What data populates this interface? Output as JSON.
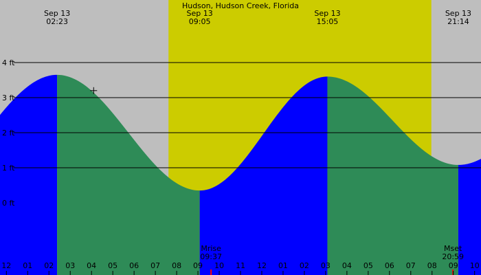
{
  "chart_data": {
    "type": "area",
    "title": "Hudson, Hudson Creek, Florida",
    "xlabel": "",
    "ylabel": "",
    "x_unit": "hours after midnight",
    "xlim": [
      -0.3,
      22.3
    ],
    "ylim": [
      -2.1,
      4.0
    ],
    "grid": true,
    "y_ticks": [
      {
        "label": "4 ft",
        "value": 4
      },
      {
        "label": "3 ft",
        "value": 3
      },
      {
        "label": "2 ft",
        "value": 2
      },
      {
        "label": "1 ft",
        "value": 1
      },
      {
        "label": "0 ft",
        "value": 0
      }
    ],
    "x_ticks": [
      {
        "label": "11",
        "hour": -1
      },
      {
        "label": "12",
        "hour": 0
      },
      {
        "label": "01",
        "hour": 1
      },
      {
        "label": "02",
        "hour": 2
      },
      {
        "label": "03",
        "hour": 3
      },
      {
        "label": "04",
        "hour": 4
      },
      {
        "label": "05",
        "hour": 5
      },
      {
        "label": "06",
        "hour": 6
      },
      {
        "label": "07",
        "hour": 7
      },
      {
        "label": "08",
        "hour": 8
      },
      {
        "label": "09",
        "hour": 9
      },
      {
        "label": "10",
        "hour": 10
      },
      {
        "label": "11",
        "hour": 11
      },
      {
        "label": "12",
        "hour": 12
      },
      {
        "label": "01",
        "hour": 13
      },
      {
        "label": "02",
        "hour": 14
      },
      {
        "label": "03",
        "hour": 15
      },
      {
        "label": "04",
        "hour": 16
      },
      {
        "label": "05",
        "hour": 17
      },
      {
        "label": "06",
        "hour": 18
      },
      {
        "label": "07",
        "hour": 19
      },
      {
        "label": "08",
        "hour": 20
      },
      {
        "label": "09",
        "hour": 21
      },
      {
        "label": "10",
        "hour": 22
      }
    ],
    "daylight": {
      "start_hour": 7.617,
      "end_hour": 19.967
    },
    "tide_events": [
      {
        "type": "high",
        "date": "Sep 13",
        "time": "02:23",
        "hour": 2.383,
        "height_ft": 3.65
      },
      {
        "type": "low",
        "date": "Sep 13",
        "time": "09:05",
        "hour": 9.083,
        "height_ft": 0.35
      },
      {
        "type": "high",
        "date": "Sep 13",
        "time": "15:05",
        "hour": 15.083,
        "height_ft": 3.6
      },
      {
        "type": "low",
        "date": "Sep 13",
        "time": "21:14",
        "hour": 21.233,
        "height_ft": 1.08
      }
    ],
    "moon_events": [
      {
        "label": "Mrise",
        "time": "09:37",
        "hour": 9.617
      },
      {
        "label": "Mset",
        "time": "20:59",
        "hour": 20.983
      }
    ],
    "marker": {
      "hour": 4.1,
      "height_ft": 3.2
    },
    "colors": {
      "background": "#bebebe",
      "daylight": "#cccc00",
      "rising": "#0000ff",
      "falling": "#2e8b57",
      "grid": "#000000",
      "moon_tick": "#ff0000"
    }
  }
}
